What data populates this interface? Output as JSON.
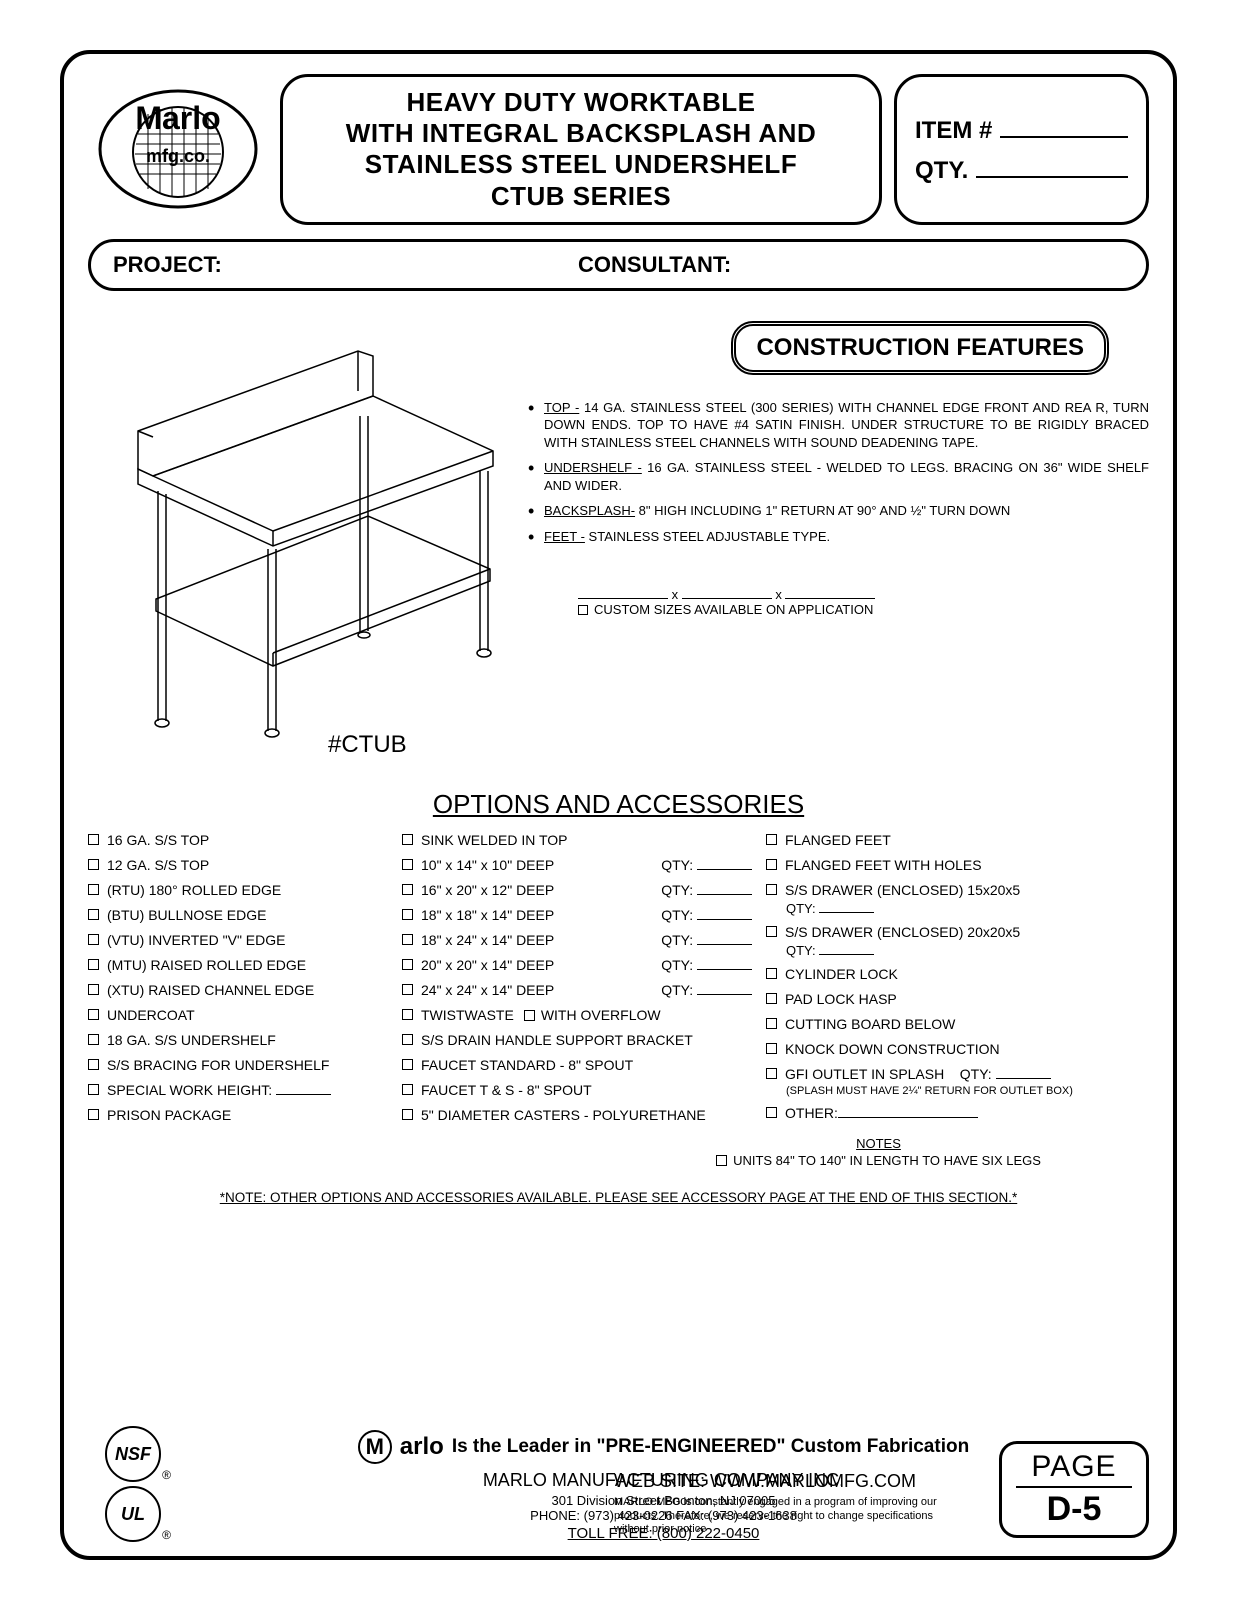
{
  "header": {
    "title_l1": "HEAVY DUTY WORKTABLE",
    "title_l2": "WITH INTEGRAL BACKSPLASH AND",
    "title_l3": "STAINLESS STEEL UNDERSHELF",
    "title_l4": "CTUB  SERIES",
    "item_label": "ITEM #",
    "qty_label": "QTY.",
    "project_label": "PROJECT:",
    "consultant_label": "CONSULTANT:"
  },
  "construction": {
    "title": "CONSTRUCTION FEATURES",
    "items": [
      {
        "lead": "TOP -",
        "body": " 14 GA. STAINLESS STEEL (300 SERIES) WITH CHANNEL EDGE FRONT AND REA R, TURN DOWN ENDS. TOP TO HAVE #4 SATIN FINISH. UNDER STRUCTURE TO BE RIGIDLY BRACED WITH STAINLESS STEEL CHANNELS WITH SOUND DEADENING TAPE."
      },
      {
        "lead": "UNDERSHELF -",
        "body": " 16 GA. STAINLESS STEEL - WELDED TO LEGS. BRACING ON 36\" WIDE SHELF AND WIDER."
      },
      {
        "lead": "BACKSPLASH-",
        "body": " 8\" HIGH INCLUDING 1\" RETURN AT 90° AND ½\" TURN DOWN"
      },
      {
        "lead": "FEET -",
        "body": " STAINLESS STEEL ADJUSTABLE TYPE."
      }
    ],
    "custom_sizes": "CUSTOM SIZES AVAILABLE ON APPLICATION"
  },
  "model": "#CTUB",
  "options": {
    "title": "OPTIONS AND ACCESSORIES",
    "col1": [
      "16 GA. S/S TOP",
      "12 GA. S/S TOP",
      "(RTU) 180° ROLLED EDGE",
      "(BTU) BULLNOSE EDGE",
      "(VTU) INVERTED \"V\" EDGE",
      "(MTU) RAISED ROLLED EDGE",
      "(XTU) RAISED CHANNEL EDGE",
      "UNDERCOAT",
      "18 GA. S/S UNDERSHELF",
      "S/S BRACING FOR UNDERSHELF",
      "SPECIAL WORK HEIGHT: _______",
      "PRISON PACKAGE"
    ],
    "col2_plain": "SINK WELDED IN TOP",
    "col2_sizes": [
      "10\" x 14\" x 10\" DEEP",
      "16\" x 20\" x 12\" DEEP",
      "18\" x 18\" x 14\" DEEP",
      "18\" x 24\" x 14\" DEEP",
      "20\" x 20\" x 14\" DEEP",
      "24\" x 24\" x 14\" DEEP"
    ],
    "qty_label": "QTY:",
    "col2_twist_a": "TWISTWASTE",
    "col2_twist_b": "WITH OVERFLOW",
    "col2_rest": [
      "S/S DRAIN HANDLE SUPPORT BRACKET",
      "FAUCET STANDARD - 8\" SPOUT",
      "FAUCET T & S - 8\" SPOUT",
      "5\" DIAMETER CASTERS - POLYURETHANE"
    ],
    "col3_a": [
      "FLANGED FEET",
      "FLANGED FEET WITH HOLES"
    ],
    "col3_drawer1": "S/S DRAWER (ENCLOSED) 15x20x5",
    "col3_drawer2": "S/S DRAWER (ENCLOSED) 20x20x5",
    "col3_b": [
      "CYLINDER LOCK",
      "PAD LOCK HASP",
      "CUTTING BOARD BELOW",
      "KNOCK DOWN CONSTRUCTION"
    ],
    "col3_gfi": "GFI OUTLET IN SPLASH",
    "col3_gfi_note": "(SPLASH MUST HAVE 2¼\" RETURN FOR OUTLET BOX)",
    "col3_other": "OTHER:",
    "notes_title": "NOTES",
    "notes_line": "UNITS 84\" TO 140\" IN LENGTH TO HAVE SIX LEGS",
    "bottom_note": "*NOTE: OTHER OPTIONS AND ACCESSORIES AVAILABLE. PLEASE SEE ACCESSORY PAGE AT THE END OF THIS SECTION.*"
  },
  "footer": {
    "tagline_brand": "arlo",
    "tagline": "Is the Leader in \"PRE-ENGINEERED\" Custom Fabrication",
    "company": "MARLO MANUFACTURING COMPANY INC.",
    "address": "301 Division Street    Boonton, NJ 07005",
    "phones": "PHONE: (973) 423-0226  FAX: (973) 423-1638",
    "toll": "TOLL FREE: (800) 222-0450",
    "website_label": "WEB SITE: WWW.MARLOMFG.COM",
    "disclaimer": "MARLO MFG is constantly engaged in a program of  improving our products. Therefore, we reserve the right  to change specifications without prior notice",
    "page_label": "PAGE",
    "page_num": "D-5",
    "cert1": "NSF",
    "cert2": "UL"
  }
}
